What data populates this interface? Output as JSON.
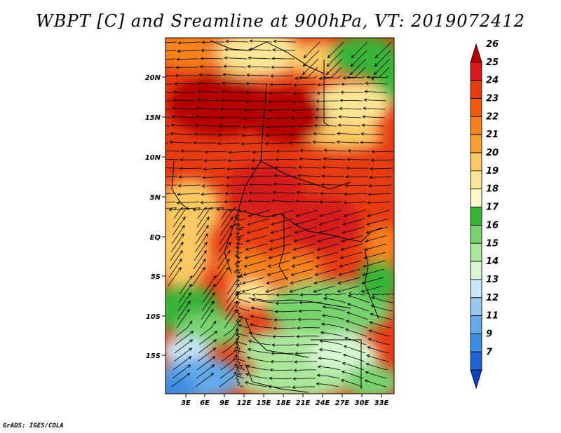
{
  "title": "WBPT [C] and Sreamline at 900hPa, VT: 2019072412",
  "credit": "GrADS: IGES/COLA",
  "map": {
    "lon_ticks": [
      "3E",
      "6E",
      "9E",
      "12E",
      "15E",
      "18E",
      "21E",
      "24E",
      "27E",
      "30E",
      "33E"
    ],
    "lat_ticks": [
      "20N",
      "15N",
      "10N",
      "5N",
      "EQ",
      "5S",
      "10S",
      "15S"
    ]
  },
  "colorbar": {
    "levels": [
      "26",
      "25",
      "24",
      "23",
      "22",
      "21",
      "20",
      "19",
      "18",
      "17",
      "16",
      "15",
      "14",
      "13",
      "12",
      "11",
      "9",
      "7"
    ],
    "colors": [
      "#b40000",
      "#d41a1a",
      "#e63c14",
      "#f05a0a",
      "#f5821e",
      "#faa032",
      "#fac864",
      "#fae696",
      "#fff8c8",
      "#37b437",
      "#78d26e",
      "#aae69b",
      "#d7f5d2",
      "#c8e6f5",
      "#96c8f0",
      "#64aaeb",
      "#3c8ce1",
      "#1e64d2",
      "#0a46be"
    ]
  }
}
